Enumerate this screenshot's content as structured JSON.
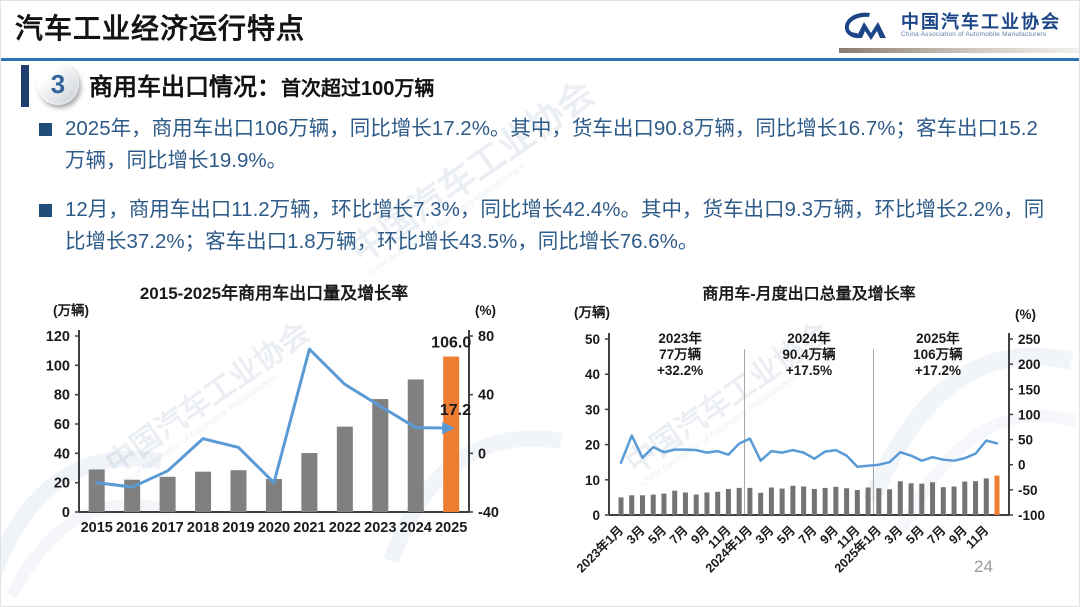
{
  "header": {
    "title": "汽车工业经济运行特点",
    "logo": {
      "name_cn": "中国汽车工业协会",
      "name_en": "China Association of Automobile Manufacturers"
    }
  },
  "section": {
    "number": "3",
    "title": "商用车出口情况：",
    "subtitle": "首次超过100万辆"
  },
  "bullets": [
    "2025年，商用车出口106万辆，同比增长17.2%。其中，货车出口90.8万辆，同比增长16.7%；客车出口15.2万辆，同比增长19.9%。",
    "12月，商用车出口11.2万辆，环比增长7.3%，同比增长42.4%。其中，货车出口9.3万辆，环比增长2.2%，同比增长37.2%；客车出口1.8万辆，环比增长43.5%，同比增长76.6%。"
  ],
  "watermark": {
    "text": "中国汽车工业协会",
    "subtext": "China Association of Automobile Manufacturers"
  },
  "page_number": "24",
  "colors": {
    "divider_blue": "#2E74B5",
    "accent_navy": "#1F3E6B",
    "bullet_navy": "#1F4E79",
    "text_blue": "#2E5B88",
    "bar_gray": "#808080",
    "bar_gray_monthly": "#737373",
    "bar_orange": "#ED7D31",
    "line_blue": "#5B9BD5",
    "logo_blue": "#1c4587"
  },
  "chart_data": [
    {
      "type": "bar+line",
      "title": "2015-2025年商用车出口量及增长率",
      "left_axis_label": "(万辆)",
      "right_axis_label": "(%)",
      "categories": [
        "2015",
        "2016",
        "2017",
        "2018",
        "2019",
        "2020",
        "2021",
        "2022",
        "2023",
        "2024",
        "2025"
      ],
      "series": [
        {
          "name": "出口量(万辆)",
          "type": "bar",
          "axis": "left",
          "values": [
            29,
            22,
            24,
            27.5,
            28.5,
            22.5,
            40.2,
            58.2,
            77,
            90.4,
            106
          ]
        },
        {
          "name": "增长率(%)",
          "type": "line",
          "axis": "right",
          "values": [
            -20,
            -23,
            -12,
            10,
            4,
            -20,
            71,
            47,
            32.2,
            17.5,
            17.2
          ]
        }
      ],
      "left_range": [
        0,
        120
      ],
      "right_range": [
        -40,
        80
      ],
      "left_ticks": [
        0,
        20,
        40,
        60,
        80,
        100,
        120
      ],
      "right_ticks": [
        -40,
        0,
        40,
        80
      ],
      "highlight_index": 10,
      "value_labels": {
        "bar_end": "106.0",
        "line_end": "17.2"
      },
      "bar_color": "#808080",
      "highlight_color": "#ED7D31",
      "line_color": "#5B9BD5",
      "grid": false,
      "legend": "none"
    },
    {
      "type": "bar+line",
      "title": "商用车-月度出口总量及增长率",
      "left_axis_label": "(万辆)",
      "right_axis_label": "(%)",
      "n_months": 36,
      "x_tick_labels": [
        "2023年1月",
        "3月",
        "5月",
        "7月",
        "9月",
        "11月",
        "2024年1月",
        "3月",
        "5月",
        "7月",
        "9月",
        "11月",
        "2025年1月",
        "3月",
        "5月",
        "7月",
        "9月",
        "11月"
      ],
      "series": [
        {
          "name": "月度出口量(万辆)",
          "type": "bar",
          "axis": "left",
          "values": [
            5.0,
            5.6,
            5.6,
            5.8,
            6.1,
            6.9,
            6.4,
            5.8,
            6.4,
            6.6,
            7.4,
            7.7,
            7.7,
            6.3,
            7.8,
            7.5,
            8.3,
            8.1,
            7.4,
            7.7,
            8.0,
            7.6,
            7.1,
            7.8,
            7.6,
            7.3,
            9.6,
            9.0,
            8.9,
            9.3,
            7.9,
            8.1,
            9.5,
            9.6,
            10.4,
            11.2
          ]
        },
        {
          "name": "同比增长率(%)",
          "type": "line",
          "axis": "right",
          "values": [
            4,
            58,
            14,
            35,
            25,
            30,
            30,
            29,
            24,
            27,
            20,
            42,
            52,
            8,
            27,
            24,
            29,
            24,
            12,
            26,
            29,
            18,
            -4,
            -2,
            0,
            5,
            25,
            18,
            8,
            15,
            10,
            8,
            13,
            22,
            48,
            42.4
          ]
        }
      ],
      "left_range": [
        0,
        50
      ],
      "right_range": [
        -100,
        250
      ],
      "left_ticks": [
        0,
        10,
        20,
        30,
        40,
        50
      ],
      "right_ticks": [
        -100,
        -50,
        0,
        50,
        100,
        150,
        200,
        250
      ],
      "highlight_index": 35,
      "divider_indices": [
        12,
        24
      ],
      "annotations": [
        {
          "year": "2023年",
          "volume": "77万辆",
          "growth": "+32.2%"
        },
        {
          "year": "2024年",
          "volume": "90.4万辆",
          "growth": "+17.5%"
        },
        {
          "year": "2025年",
          "volume": "106万辆",
          "growth": "+17.2%"
        }
      ],
      "bar_color": "#737373",
      "highlight_color": "#ED7D31",
      "line_color": "#5B9BD5",
      "grid": false,
      "legend": "none"
    }
  ]
}
